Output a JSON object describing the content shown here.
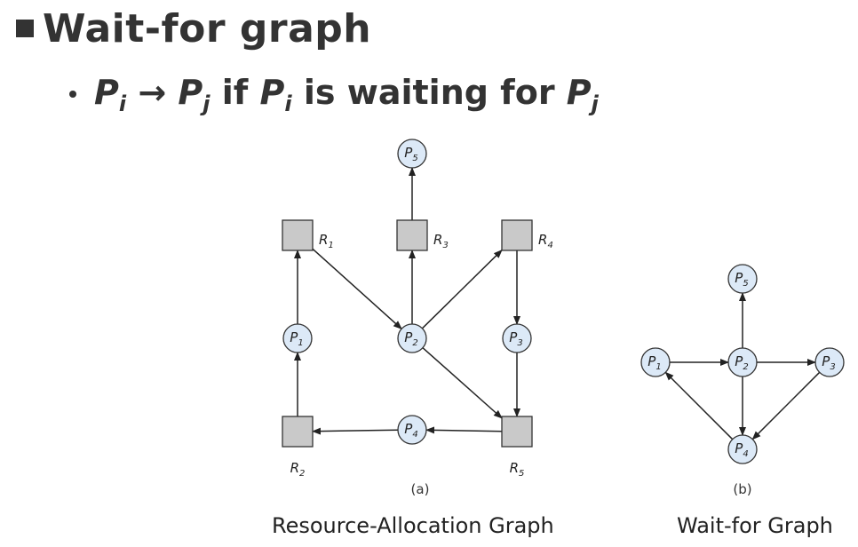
{
  "slide": {
    "title": "Wait-for graph",
    "subtitle": {
      "p": "P",
      "i": "i",
      "j": "j",
      "arrow": "→",
      "if_text": " if ",
      "waiting_text": " is waiting for "
    }
  },
  "resource_allocation_graph": {
    "processes": [
      {
        "id": "p1",
        "label": "P",
        "sub": "1"
      },
      {
        "id": "p2",
        "label": "P",
        "sub": "2"
      },
      {
        "id": "p3",
        "label": "P",
        "sub": "3"
      },
      {
        "id": "p4",
        "label": "P",
        "sub": "4"
      },
      {
        "id": "p5",
        "label": "P",
        "sub": "5"
      }
    ],
    "resources": [
      {
        "id": "r1",
        "label": "R",
        "sub": "1"
      },
      {
        "id": "r2",
        "label": "R",
        "sub": "2"
      },
      {
        "id": "r3",
        "label": "R",
        "sub": "3"
      },
      {
        "id": "r4",
        "label": "R",
        "sub": "4"
      },
      {
        "id": "r5",
        "label": "R",
        "sub": "5"
      }
    ],
    "edges": [
      {
        "from": "r3",
        "to": "p5"
      },
      {
        "from": "p1",
        "to": "r1"
      },
      {
        "from": "r1",
        "to": "p2"
      },
      {
        "from": "p2",
        "to": "r3"
      },
      {
        "from": "p2",
        "to": "r4"
      },
      {
        "from": "r4",
        "to": "p3"
      },
      {
        "from": "p3",
        "to": "r5"
      },
      {
        "from": "p2",
        "to": "r5"
      },
      {
        "from": "r5",
        "to": "p4"
      },
      {
        "from": "p4",
        "to": "r2"
      },
      {
        "from": "r2",
        "to": "p1"
      }
    ],
    "panel_label": "(a)",
    "caption": "Resource-Allocation Graph"
  },
  "wait_for_graph": {
    "processes": [
      {
        "id": "p1",
        "label": "P",
        "sub": "1"
      },
      {
        "id": "p2",
        "label": "P",
        "sub": "2"
      },
      {
        "id": "p3",
        "label": "P",
        "sub": "3"
      },
      {
        "id": "p4",
        "label": "P",
        "sub": "4"
      },
      {
        "id": "p5",
        "label": "P",
        "sub": "5"
      }
    ],
    "edges": [
      {
        "from": "p1",
        "to": "p2"
      },
      {
        "from": "p2",
        "to": "p3"
      },
      {
        "from": "p2",
        "to": "p5"
      },
      {
        "from": "p2",
        "to": "p4"
      },
      {
        "from": "p3",
        "to": "p4"
      },
      {
        "from": "p4",
        "to": "p1"
      }
    ],
    "panel_label": "(b)",
    "caption": "Wait-for Graph"
  },
  "colors": {
    "process_fill": "#dce9f7",
    "resource_fill": "#c9c9c9",
    "stroke": "#333333",
    "text": "#222222"
  }
}
